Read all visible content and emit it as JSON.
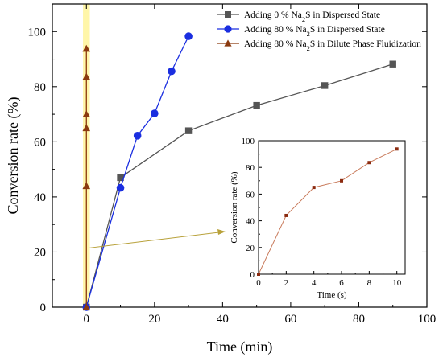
{
  "chart_data": [
    {
      "type": "line",
      "xlabel": "Time (min)",
      "ylabel": "Conversion rate (%)",
      "xlim": [
        -10,
        100
      ],
      "ylim": [
        0,
        110
      ],
      "xticks": [
        0,
        20,
        40,
        60,
        80,
        100
      ],
      "yticks": [
        0,
        20,
        40,
        60,
        80,
        100
      ],
      "legend_position": "top-right",
      "highlight_band": {
        "x": [
          -1,
          1
        ],
        "color": "#fff59a"
      },
      "series": [
        {
          "name": "Adding 0 % Na2S in Dispersed State",
          "legend_prefix": "Adding 0 % Na",
          "legend_sub": "2",
          "legend_suffix": "S in Dispersed State",
          "color": "#555555",
          "marker": "square",
          "x": [
            0,
            10,
            30,
            50,
            70,
            90
          ],
          "y": [
            0,
            47,
            64,
            73.2,
            80.4,
            88.2
          ]
        },
        {
          "name": "Adding 80 % Na2S in Dispersed State",
          "legend_prefix": "Adding 80 % Na",
          "legend_sub": "2",
          "legend_suffix": "S in Dispersed State",
          "color": "#1a2ee0",
          "marker": "circle",
          "x": [
            0,
            10,
            15,
            20,
            25,
            30
          ],
          "y": [
            0,
            43.3,
            62.2,
            70.3,
            85.6,
            98.3
          ]
        },
        {
          "name": "Adding 80 % Na2S in Dilute Phase Fluidization",
          "legend_prefix": "Adding 80 % Na",
          "legend_sub": "2",
          "legend_suffix": "S in Dilute Phase Fluidization",
          "color": "#8b3a0f",
          "marker": "triangle",
          "x": [
            0,
            0,
            0,
            0,
            0,
            0
          ],
          "y": [
            0,
            44,
            65,
            70,
            83.6,
            93.8
          ]
        }
      ]
    },
    {
      "type": "line",
      "role": "inset",
      "xlabel": "Time (s)",
      "ylabel": "Conversion rate (%)",
      "xlim": [
        0,
        10.6
      ],
      "ylim": [
        0,
        100
      ],
      "xticks": [
        0,
        2,
        4,
        6,
        8,
        10
      ],
      "yticks": [
        0,
        20,
        40,
        60,
        80,
        100
      ],
      "series": [
        {
          "color": "#c97c5d",
          "marker_color": "#8b2a0f",
          "x": [
            0,
            2,
            4,
            6,
            8,
            10
          ],
          "y": [
            0,
            44,
            65,
            70,
            83.6,
            93.8
          ]
        }
      ]
    }
  ]
}
